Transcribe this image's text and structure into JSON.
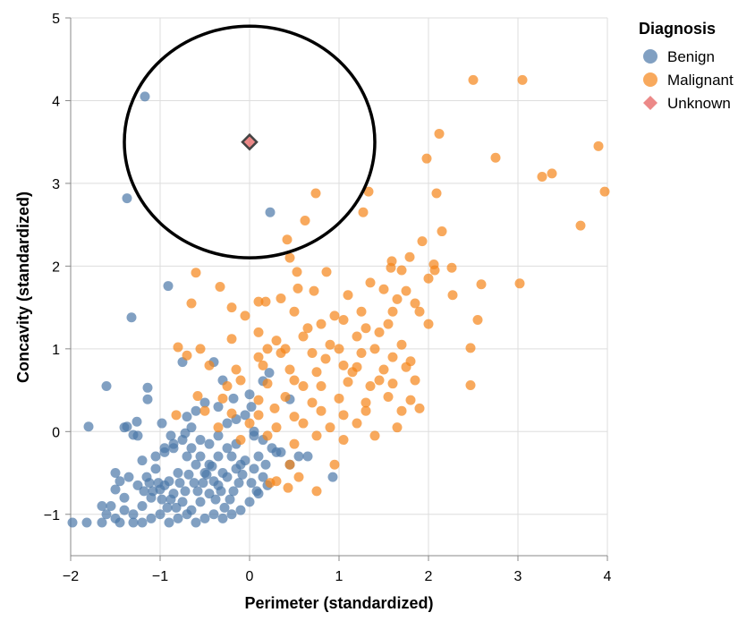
{
  "chart_data": {
    "type": "scatter",
    "xlabel": "Perimeter (standardized)",
    "ylabel": "Concavity (standardized)",
    "xlim": [
      -2,
      4
    ],
    "ylim": [
      -1.5,
      5
    ],
    "x_ticks": [
      -2,
      -1,
      0,
      1,
      2,
      3,
      4
    ],
    "y_ticks": [
      -1,
      0,
      1,
      2,
      3,
      4,
      5
    ],
    "x_tick_labels": [
      "−2",
      "−1",
      "0",
      "1",
      "2",
      "3",
      "4"
    ],
    "y_tick_labels": [
      "−1",
      "0",
      "1",
      "2",
      "3",
      "4",
      "5"
    ],
    "grid": true,
    "legend": {
      "title": "Diagnosis",
      "placement": "right",
      "entries": [
        {
          "label": "Benign",
          "shape": "circle",
          "color": "#4c78a8"
        },
        {
          "label": "Malignant",
          "shape": "circle",
          "color": "#f58518"
        },
        {
          "label": "Unknown",
          "shape": "diamond",
          "color": "#e45756"
        }
      ]
    },
    "circle_annotation": {
      "cx": 0,
      "cy": 3.5,
      "rx": 1.4,
      "ry": 1.4
    },
    "series": [
      {
        "name": "Benign",
        "color": "#4c78a8",
        "points": [
          [
            -1.17,
            4.05
          ],
          [
            -1.37,
            2.82
          ],
          [
            0.23,
            2.65
          ],
          [
            -0.91,
            1.76
          ],
          [
            -1.32,
            1.38
          ],
          [
            -0.75,
            0.84
          ],
          [
            -0.4,
            0.84
          ],
          [
            -0.3,
            0.62
          ],
          [
            0.15,
            0.61
          ],
          [
            0.22,
            0.71
          ],
          [
            0.45,
            0.39
          ],
          [
            0.02,
            0.3
          ],
          [
            -1.6,
            0.55
          ],
          [
            -1.14,
            0.53
          ],
          [
            -1.14,
            0.39
          ],
          [
            -1.8,
            0.06
          ],
          [
            -1.37,
            0.06
          ],
          [
            -1.26,
            0.12
          ],
          [
            -1.3,
            -0.04
          ],
          [
            -1.2,
            -0.35
          ],
          [
            -1.05,
            -0.3
          ],
          [
            -0.95,
            -0.25
          ],
          [
            -0.85,
            -0.2
          ],
          [
            -0.75,
            -0.1
          ],
          [
            -0.7,
            0.18
          ],
          [
            -0.65,
            0.05
          ],
          [
            -0.55,
            -0.1
          ],
          [
            -0.45,
            -0.15
          ],
          [
            -0.35,
            -0.05
          ],
          [
            -0.25,
            0.1
          ],
          [
            -0.15,
            0.15
          ],
          [
            -0.05,
            0.2
          ],
          [
            0.05,
            0.0
          ],
          [
            0.15,
            -0.1
          ],
          [
            0.25,
            -0.2
          ],
          [
            0.3,
            -0.25
          ],
          [
            0.1,
            -0.3
          ],
          [
            -0.1,
            -0.4
          ],
          [
            -0.2,
            -0.3
          ],
          [
            -0.3,
            -0.5
          ],
          [
            -0.4,
            -0.6
          ],
          [
            -0.5,
            -0.5
          ],
          [
            -0.6,
            -0.4
          ],
          [
            -0.7,
            -0.3
          ],
          [
            -0.8,
            -0.5
          ],
          [
            -0.9,
            -0.6
          ],
          [
            -1.0,
            -0.7
          ],
          [
            -1.1,
            -0.8
          ],
          [
            -1.2,
            -0.9
          ],
          [
            -1.3,
            -1.0
          ],
          [
            -1.4,
            -0.8
          ],
          [
            -1.45,
            -0.6
          ],
          [
            -1.5,
            -0.7
          ],
          [
            -1.55,
            -0.9
          ],
          [
            -1.6,
            -1.0
          ],
          [
            -1.5,
            -0.5
          ],
          [
            -1.35,
            -0.55
          ],
          [
            -1.25,
            -0.65
          ],
          [
            -1.15,
            -0.55
          ],
          [
            -1.05,
            -0.45
          ],
          [
            -0.95,
            -0.65
          ],
          [
            -0.85,
            -0.75
          ],
          [
            -0.75,
            -0.85
          ],
          [
            -0.65,
            -0.95
          ],
          [
            -0.55,
            -0.85
          ],
          [
            -0.45,
            -0.75
          ],
          [
            -0.35,
            -0.65
          ],
          [
            -0.25,
            -0.55
          ],
          [
            -0.15,
            -0.45
          ],
          [
            -0.05,
            -0.35
          ],
          [
            0.05,
            -0.45
          ],
          [
            0.15,
            -0.55
          ],
          [
            0.2,
            -0.65
          ],
          [
            0.1,
            -0.75
          ],
          [
            0.0,
            -0.85
          ],
          [
            -0.1,
            -0.95
          ],
          [
            -0.2,
            -1.0
          ],
          [
            -0.3,
            -1.05
          ],
          [
            -0.4,
            -1.0
          ],
          [
            -0.5,
            -1.05
          ],
          [
            -0.6,
            -1.1
          ],
          [
            -0.7,
            -1.0
          ],
          [
            -0.8,
            -1.05
          ],
          [
            -0.9,
            -1.1
          ],
          [
            -1.0,
            -1.0
          ],
          [
            -1.1,
            -1.05
          ],
          [
            -1.2,
            -1.1
          ],
          [
            -1.3,
            -1.1
          ],
          [
            -1.45,
            -1.1
          ],
          [
            -1.65,
            -1.1
          ],
          [
            -1.82,
            -1.1
          ],
          [
            -1.98,
            -1.1
          ],
          [
            -1.5,
            -1.05
          ],
          [
            -1.65,
            -0.9
          ],
          [
            -1.4,
            -0.95
          ],
          [
            -0.95,
            -0.2
          ],
          [
            -0.85,
            -0.15
          ],
          [
            -0.65,
            -0.2
          ],
          [
            -0.55,
            -0.3
          ],
          [
            -0.45,
            -0.4
          ],
          [
            -0.35,
            -0.3
          ],
          [
            -0.25,
            -0.2
          ],
          [
            -0.15,
            -0.15
          ],
          [
            0.05,
            -0.05
          ],
          [
            0.18,
            -0.4
          ],
          [
            -0.78,
            -0.62
          ],
          [
            -0.72,
            -0.72
          ],
          [
            -0.68,
            -0.52
          ],
          [
            -0.62,
            -0.62
          ],
          [
            -0.58,
            -0.72
          ],
          [
            -0.52,
            -0.62
          ],
          [
            -0.48,
            -0.52
          ],
          [
            -0.42,
            -0.42
          ],
          [
            -0.38,
            -0.82
          ],
          [
            -0.32,
            -0.72
          ],
          [
            -0.28,
            -0.92
          ],
          [
            -0.22,
            -0.82
          ],
          [
            -0.18,
            -0.72
          ],
          [
            -0.12,
            -0.62
          ],
          [
            -0.08,
            -0.52
          ],
          [
            0.02,
            -0.62
          ],
          [
            0.08,
            -0.72
          ],
          [
            -0.88,
            -0.82
          ],
          [
            -0.82,
            -0.92
          ],
          [
            -0.92,
            -0.92
          ],
          [
            -0.98,
            -0.82
          ],
          [
            -1.02,
            -0.62
          ],
          [
            -1.08,
            -0.72
          ],
          [
            -1.12,
            -0.62
          ],
          [
            -1.18,
            -0.72
          ],
          [
            0.55,
            -0.3
          ],
          [
            0.45,
            -0.4
          ],
          [
            0.65,
            -0.3
          ],
          [
            0.93,
            -0.55
          ],
          [
            0.35,
            -0.25
          ],
          [
            -1.4,
            0.05
          ],
          [
            -1.25,
            -0.05
          ],
          [
            -0.98,
            0.1
          ],
          [
            -0.88,
            -0.05
          ],
          [
            -0.6,
            0.25
          ],
          [
            -0.35,
            0.3
          ],
          [
            -0.18,
            0.4
          ],
          [
            0.0,
            0.45
          ],
          [
            -0.5,
            0.35
          ],
          [
            -0.72,
            -0.02
          ]
        ]
      },
      {
        "name": "Malignant",
        "color": "#f58518",
        "points": [
          [
            2.5,
            4.25
          ],
          [
            3.05,
            4.25
          ],
          [
            2.12,
            3.6
          ],
          [
            3.9,
            3.45
          ],
          [
            2.75,
            3.31
          ],
          [
            1.98,
            3.3
          ],
          [
            3.38,
            3.12
          ],
          [
            3.27,
            3.08
          ],
          [
            3.97,
            2.9
          ],
          [
            0.74,
            2.88
          ],
          [
            1.33,
            2.9
          ],
          [
            2.09,
            2.88
          ],
          [
            1.27,
            2.65
          ],
          [
            0.62,
            2.55
          ],
          [
            3.7,
            2.49
          ],
          [
            2.15,
            2.42
          ],
          [
            0.42,
            2.32
          ],
          [
            1.93,
            2.3
          ],
          [
            1.79,
            2.11
          ],
          [
            0.45,
            2.1
          ],
          [
            1.59,
            2.06
          ],
          [
            2.06,
            2.02
          ],
          [
            1.58,
            1.98
          ],
          [
            2.26,
            1.98
          ],
          [
            0.53,
            1.93
          ],
          [
            0.86,
            1.93
          ],
          [
            -0.6,
            1.92
          ],
          [
            -0.65,
            1.55
          ],
          [
            2.07,
            1.95
          ],
          [
            -0.33,
            1.75
          ],
          [
            1.35,
            1.8
          ],
          [
            2.59,
            1.78
          ],
          [
            3.02,
            1.79
          ],
          [
            0.54,
            1.73
          ],
          [
            0.35,
            1.61
          ],
          [
            0.1,
            1.57
          ],
          [
            0.18,
            1.57
          ],
          [
            -0.2,
            1.5
          ],
          [
            0.72,
            1.7
          ],
          [
            1.1,
            1.65
          ],
          [
            1.5,
            1.72
          ],
          [
            1.75,
            1.7
          ],
          [
            2.27,
            1.65
          ],
          [
            1.65,
            1.6
          ],
          [
            1.85,
            1.55
          ],
          [
            -0.05,
            1.4
          ],
          [
            0.5,
            1.45
          ],
          [
            0.8,
            1.3
          ],
          [
            1.05,
            1.35
          ],
          [
            1.3,
            1.25
          ],
          [
            1.55,
            1.3
          ],
          [
            2.55,
            1.35
          ],
          [
            0.1,
            1.2
          ],
          [
            0.3,
            1.1
          ],
          [
            0.6,
            1.15
          ],
          [
            0.9,
            1.05
          ],
          [
            1.2,
            1.15
          ],
          [
            1.45,
            1.2
          ],
          [
            1.7,
            1.05
          ],
          [
            2.0,
            1.3
          ],
          [
            -0.8,
            1.02
          ],
          [
            -0.55,
            1.0
          ],
          [
            -0.2,
            1.12
          ],
          [
            0.2,
            1.0
          ],
          [
            0.4,
            1.0
          ],
          [
            0.7,
            0.95
          ],
          [
            1.0,
            1.0
          ],
          [
            1.25,
            0.95
          ],
          [
            1.4,
            1.0
          ],
          [
            1.6,
            0.9
          ],
          [
            1.8,
            0.85
          ],
          [
            2.47,
            1.01
          ],
          [
            -0.7,
            0.92
          ],
          [
            -0.45,
            0.8
          ],
          [
            -0.15,
            0.75
          ],
          [
            0.15,
            0.8
          ],
          [
            0.45,
            0.75
          ],
          [
            0.75,
            0.72
          ],
          [
            1.05,
            0.8
          ],
          [
            1.2,
            0.78
          ],
          [
            1.5,
            0.75
          ],
          [
            1.75,
            0.78
          ],
          [
            -0.1,
            0.62
          ],
          [
            0.2,
            0.58
          ],
          [
            0.5,
            0.62
          ],
          [
            0.8,
            0.55
          ],
          [
            1.1,
            0.6
          ],
          [
            1.35,
            0.55
          ],
          [
            1.6,
            0.58
          ],
          [
            1.85,
            0.62
          ],
          [
            2.47,
            0.56
          ],
          [
            -0.58,
            0.43
          ],
          [
            -0.3,
            0.4
          ],
          [
            0.1,
            0.38
          ],
          [
            0.4,
            0.42
          ],
          [
            0.7,
            0.35
          ],
          [
            1.0,
            0.4
          ],
          [
            1.3,
            0.35
          ],
          [
            1.55,
            0.42
          ],
          [
            1.8,
            0.38
          ],
          [
            -0.82,
            0.2
          ],
          [
            -0.5,
            0.25
          ],
          [
            -0.2,
            0.22
          ],
          [
            0.1,
            0.2
          ],
          [
            0.5,
            0.18
          ],
          [
            0.8,
            0.25
          ],
          [
            1.05,
            0.2
          ],
          [
            1.3,
            0.25
          ],
          [
            1.7,
            0.25
          ],
          [
            1.9,
            0.28
          ],
          [
            -0.35,
            0.05
          ],
          [
            0.0,
            0.1
          ],
          [
            0.3,
            0.05
          ],
          [
            0.6,
            0.1
          ],
          [
            0.9,
            0.05
          ],
          [
            1.2,
            0.1
          ],
          [
            1.65,
            0.05
          ],
          [
            -0.1,
            -0.1
          ],
          [
            0.2,
            -0.05
          ],
          [
            0.5,
            -0.15
          ],
          [
            0.75,
            -0.05
          ],
          [
            1.05,
            -0.1
          ],
          [
            1.4,
            -0.05
          ],
          [
            0.45,
            -0.4
          ],
          [
            0.95,
            -0.4
          ],
          [
            0.3,
            -0.6
          ],
          [
            0.55,
            -0.55
          ],
          [
            0.75,
            -0.72
          ],
          [
            0.43,
            -0.68
          ],
          [
            0.23,
            -0.62
          ],
          [
            0.6,
            0.55
          ],
          [
            0.85,
            0.88
          ],
          [
            1.15,
            0.72
          ],
          [
            1.45,
            0.62
          ],
          [
            0.35,
            0.95
          ],
          [
            0.65,
            1.25
          ],
          [
            0.95,
            1.4
          ],
          [
            1.25,
            1.45
          ],
          [
            1.6,
            1.45
          ],
          [
            1.9,
            1.45
          ],
          [
            2.0,
            1.85
          ],
          [
            1.7,
            1.95
          ],
          [
            0.1,
            0.9
          ],
          [
            -0.25,
            0.55
          ],
          [
            0.28,
            0.28
          ]
        ]
      },
      {
        "name": "Unknown",
        "color": "#e45756",
        "points": [
          [
            0,
            3.5
          ]
        ]
      }
    ]
  }
}
